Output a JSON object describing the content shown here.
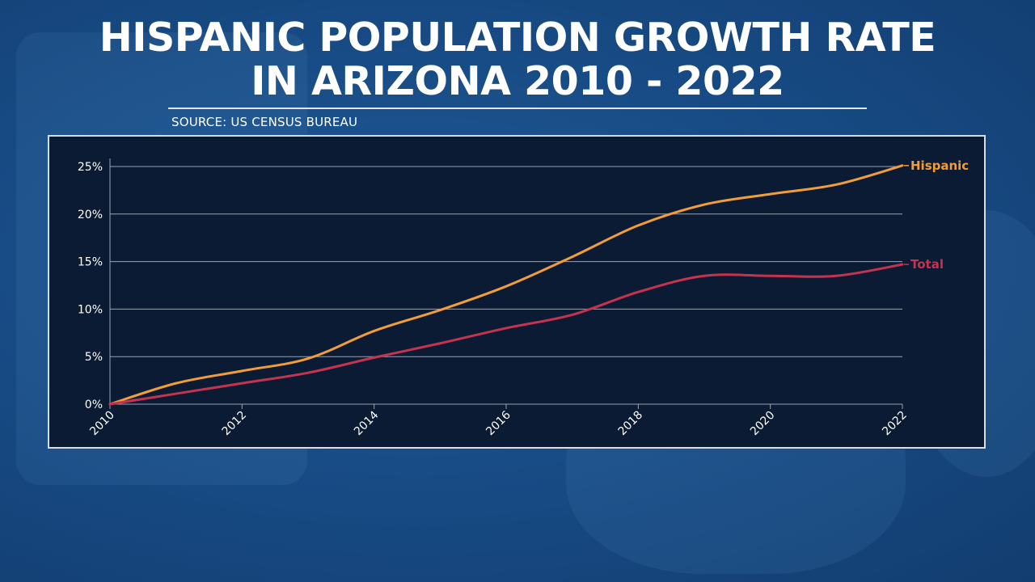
{
  "header": {
    "title_line1": "HISPANIC POPULATION GROWTH RATE",
    "title_line2": "IN ARIZONA 2010 - 2022",
    "source": "SOURCE: US CENSUS BUREAU"
  },
  "colors": {
    "hispanic": "#f19d3a",
    "total": "#c6334f",
    "grid": "#9aa3b2",
    "axis_text": "#ffffff"
  },
  "chart_data": {
    "type": "line",
    "x": [
      2010,
      2011,
      2012,
      2013,
      2014,
      2015,
      2016,
      2017,
      2018,
      2019,
      2020,
      2021,
      2022
    ],
    "series": [
      {
        "name": "Hispanic",
        "values": [
          0,
          2.2,
          3.5,
          4.8,
          7.7,
          9.9,
          12.4,
          15.5,
          18.8,
          21.0,
          22.1,
          23.1,
          25.1
        ]
      },
      {
        "name": "Total",
        "values": [
          0,
          1.1,
          2.2,
          3.3,
          4.9,
          6.4,
          8.0,
          9.4,
          11.8,
          13.5,
          13.5,
          13.5,
          14.7
        ]
      }
    ],
    "x_ticks": [
      "2010",
      "2012",
      "2014",
      "2016",
      "2018",
      "2020",
      "2022"
    ],
    "y_ticks": [
      "0%",
      "5%",
      "10%",
      "15%",
      "20%",
      "25%"
    ],
    "y_tick_values": [
      0,
      5,
      10,
      15,
      20,
      25
    ],
    "xlim": [
      2010,
      2022
    ],
    "ylim": [
      0,
      25
    ],
    "grid": "horizontal",
    "legend": "inline labels at line ends"
  }
}
